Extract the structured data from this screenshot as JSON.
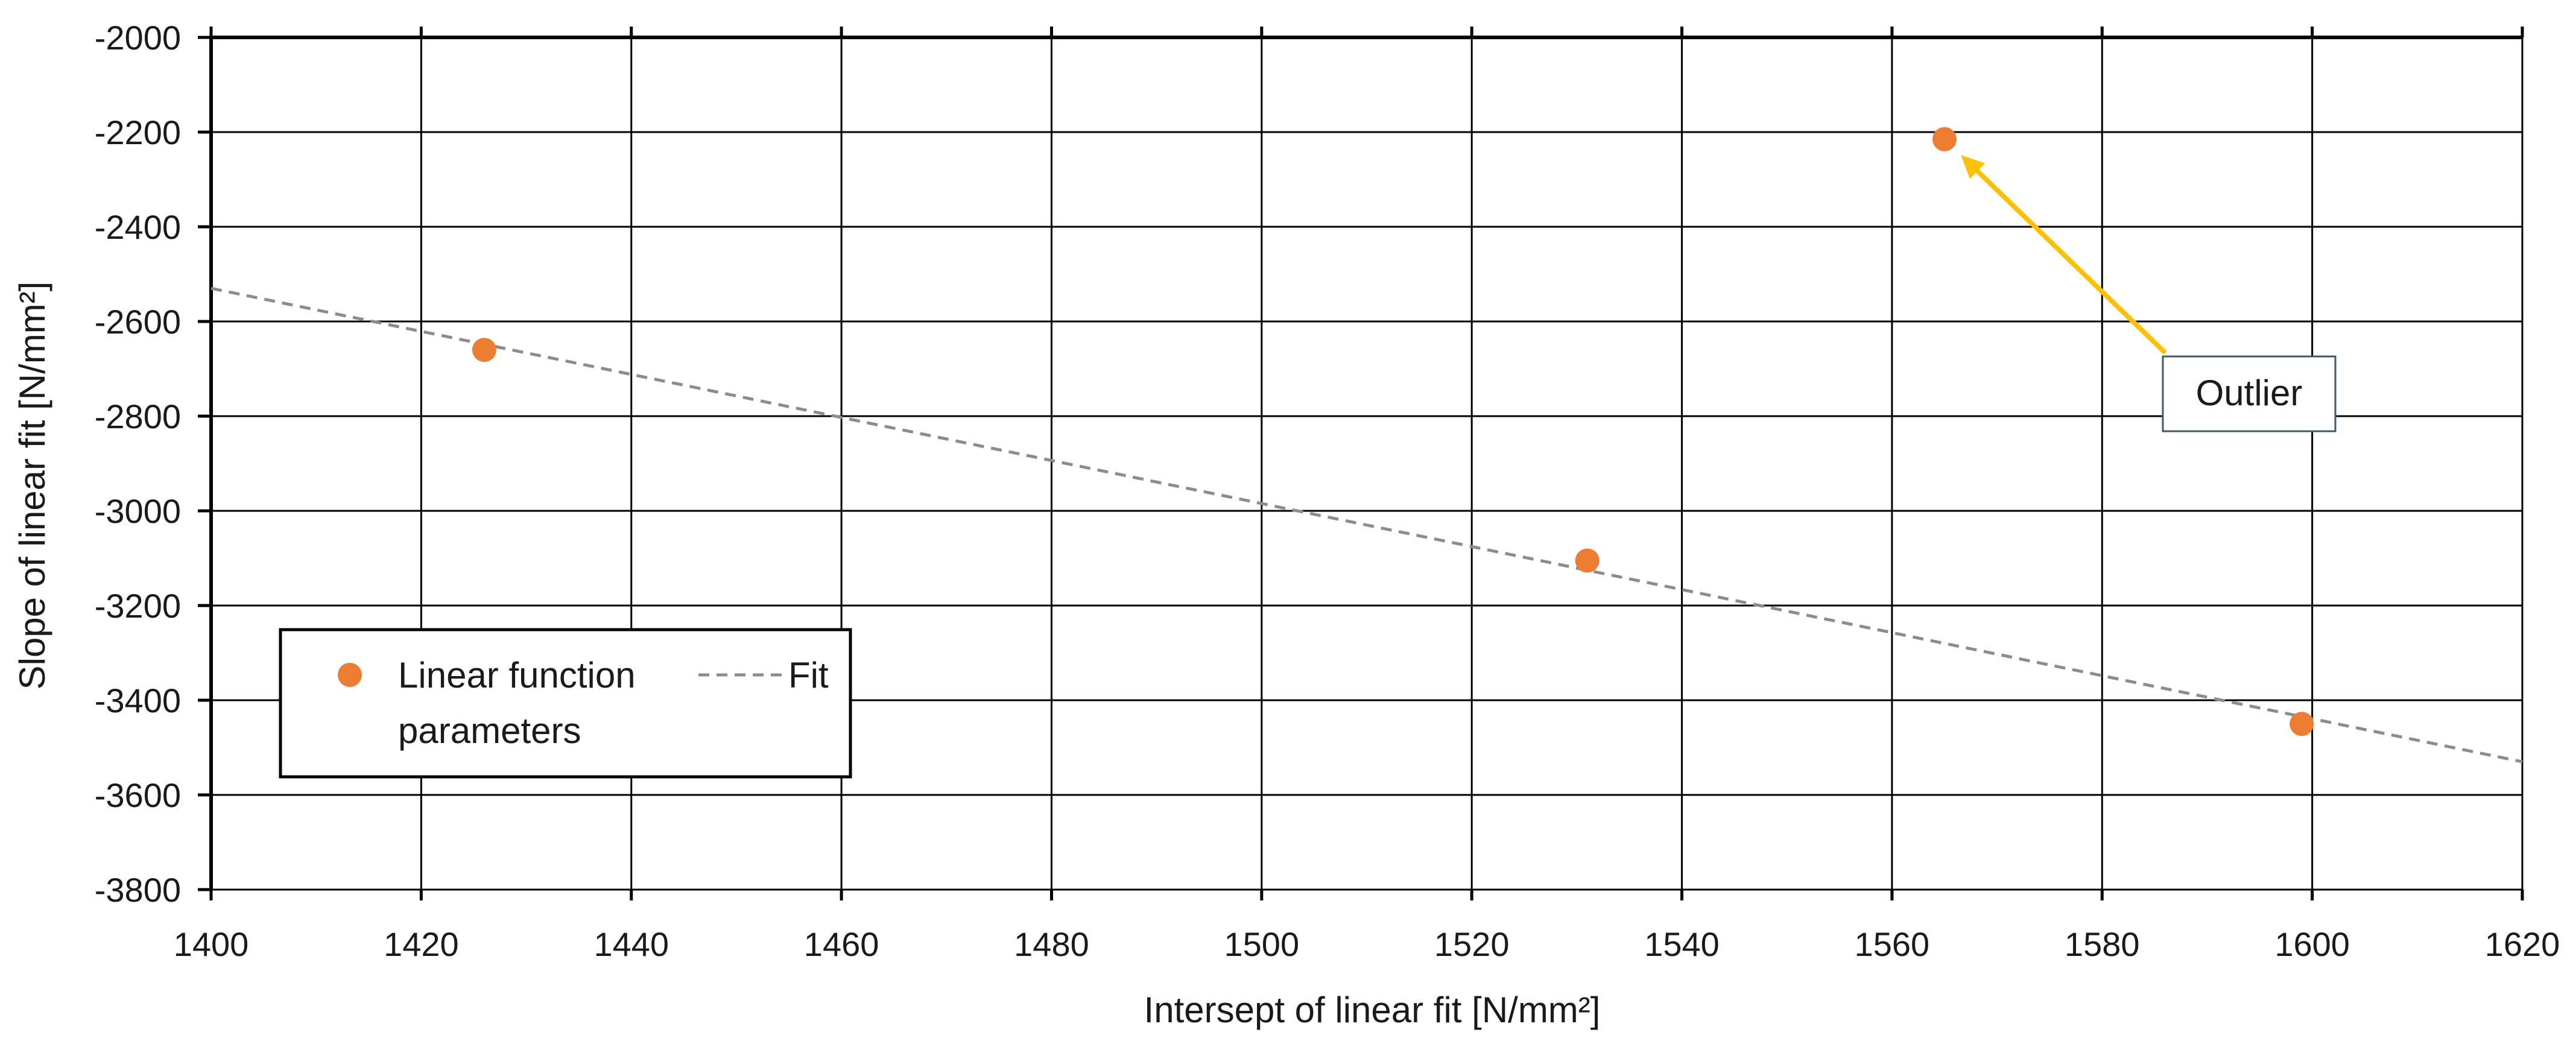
{
  "chart_data": {
    "type": "scatter",
    "title": "",
    "xlabel": "Intersept of linear fit   [N/mm²]",
    "ylabel": "Slope of linear fit   [N/mm²]",
    "xlim": [
      1400,
      1620
    ],
    "ylim": [
      -3800,
      -2000
    ],
    "x_ticks": [
      1400,
      1420,
      1440,
      1460,
      1480,
      1500,
      1520,
      1540,
      1560,
      1580,
      1600,
      1620
    ],
    "y_ticks": [
      -2000,
      -2200,
      -2400,
      -2600,
      -2800,
      -3000,
      -3200,
      -3400,
      -3600,
      -3800
    ],
    "grid": true,
    "legend_position": "lower-left",
    "series": [
      {
        "name": "Linear function parameters",
        "kind": "scatter",
        "color": "#ED7D31",
        "x": [
          1426,
          1531,
          1565,
          1599
        ],
        "y": [
          -2660,
          -3105,
          -2215,
          -3450
        ]
      },
      {
        "name": "Fit",
        "kind": "line",
        "style": "dashed",
        "color": "#8C8C8C",
        "x": [
          1400,
          1620
        ],
        "y": [
          -2530,
          -3530
        ]
      }
    ],
    "legend": {
      "line1": "Linear function",
      "line2": "parameters",
      "fit": "Fit"
    },
    "annotations": [
      {
        "text": "Outlier",
        "target_x": 1565,
        "target_y": -2215,
        "arrow_color": "#FFC000"
      }
    ]
  }
}
